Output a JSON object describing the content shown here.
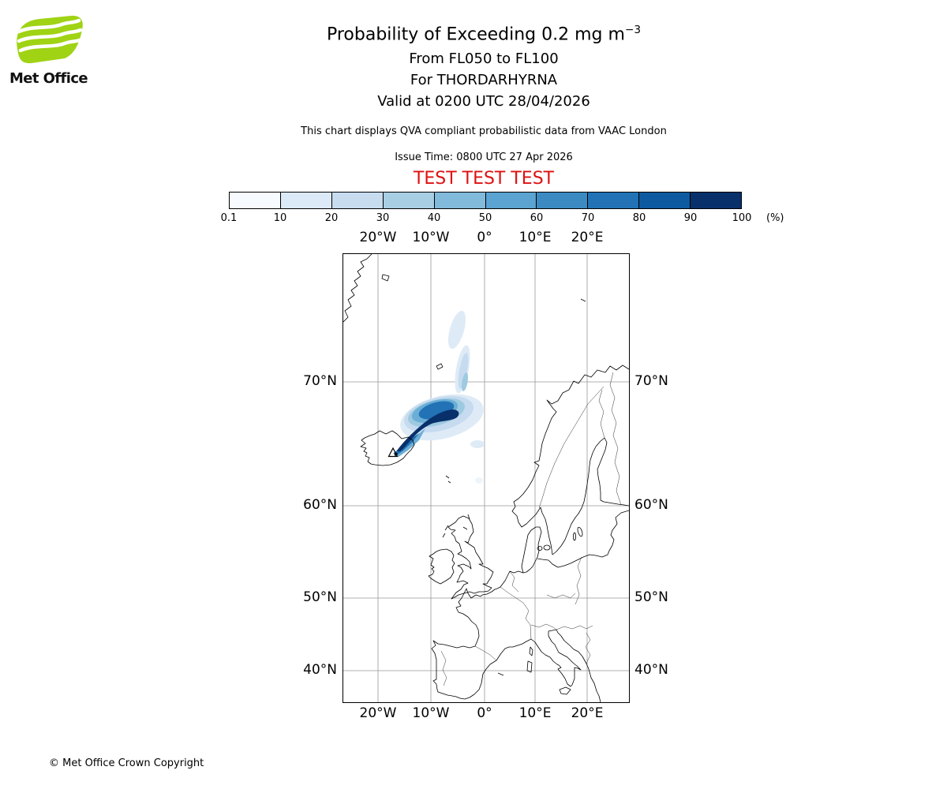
{
  "header": {
    "logo_text": "Met Office",
    "title_main": "Probability of Exceeding 0.2 mg m",
    "title_sup": "−3",
    "subtitle1": "From FL050 to FL100",
    "subtitle2": "For THORDARHYRNA",
    "subtitle3": "Valid at 0200 UTC 28/04/2026",
    "info": "This chart displays QVA compliant probabilistic data from VAAC London",
    "issue_time": "Issue Time: 0800 UTC 27 Apr 2026",
    "test_banner": "TEST TEST TEST"
  },
  "colorbar": {
    "ticks": [
      "0.1",
      "10",
      "20",
      "30",
      "40",
      "50",
      "60",
      "70",
      "80",
      "90",
      "100"
    ],
    "unit": "(%)",
    "colors": [
      "#f7fbff",
      "#dce9f6",
      "#c7dcef",
      "#a8cee4",
      "#82badb",
      "#5ba3d0",
      "#3b8bc2",
      "#2272b5",
      "#0e5aa0",
      "#08306b"
    ]
  },
  "map": {
    "lon_labels": [
      "20°W",
      "10°W",
      "0°",
      "10°E",
      "20°E"
    ],
    "lat_labels": [
      "70°N",
      "60°N",
      "50°N",
      "40°N"
    ]
  },
  "colors": {
    "brand_green": "#9fd314",
    "test_red": "#dd1111",
    "grid_gray": "#999999",
    "coast_black": "#000000"
  },
  "footer": {
    "copyright": "© Met Office Crown Copyright"
  }
}
